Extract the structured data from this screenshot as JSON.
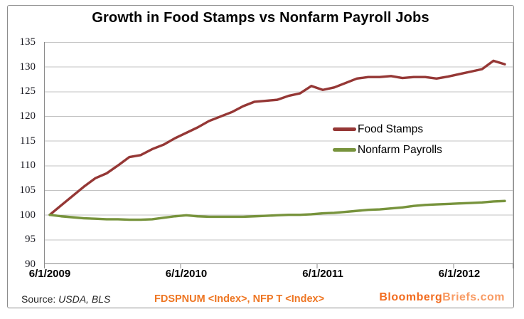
{
  "title": "Growth in Food Stamps vs Nonfarm Payroll Jobs",
  "legend": {
    "items": [
      {
        "label": "Food Stamps"
      },
      {
        "label": "Nonfarm Payrolls"
      }
    ]
  },
  "footer": {
    "source_prefix": "Source: ",
    "source_value": "USDA, BLS",
    "tickers": "FDSPNUM <Index>, NFP T <Index>",
    "brand_main": "Bloomberg",
    "brand_secondary": "Briefs.com"
  },
  "colors": {
    "food_stamps": "#953735",
    "nonfarm_payrolls": "#77933C",
    "grid": "#c3c3c3",
    "axis": "#8c8c8c",
    "ticker_orange": "#ee7623",
    "brand_orange": "#f26d21",
    "brand_orange_light": "#f89a62"
  },
  "chart_data": {
    "type": "line",
    "title": "Growth in Food Stamps vs Nonfarm Payroll Jobs",
    "xlabel": "",
    "ylabel": "",
    "ylim": [
      90,
      135
    ],
    "y_ticks": [
      90,
      95,
      100,
      105,
      110,
      115,
      120,
      125,
      130,
      135
    ],
    "x_tick_labels": [
      "6/1/2009",
      "6/1/2010",
      "6/1/2011",
      "6/1/2012"
    ],
    "grid": "horizontal",
    "legend_position": "center-right",
    "index_base": "June 2009 = 100",
    "x": [
      "Jun 2009",
      "Jul 2009",
      "Aug 2009",
      "Sep 2009",
      "Oct 2009",
      "Nov 2009",
      "Dec 2009",
      "Jan 2010",
      "Feb 2010",
      "Mar 2010",
      "Apr 2010",
      "May 2010",
      "Jun 2010",
      "Jul 2010",
      "Aug 2010",
      "Sep 2010",
      "Oct 2010",
      "Nov 2010",
      "Dec 2010",
      "Jan 2011",
      "Feb 2011",
      "Mar 2011",
      "Apr 2011",
      "May 2011",
      "Jun 2011",
      "Jul 2011",
      "Aug 2011",
      "Sep 2011",
      "Oct 2011",
      "Nov 2011",
      "Dec 2011",
      "Jan 2012",
      "Feb 2012",
      "Mar 2012",
      "Apr 2012",
      "May 2012",
      "Jun 2012",
      "Jul 2012",
      "Aug 2012",
      "Sep 2012",
      "Oct 2012"
    ],
    "series": [
      {
        "name": "Food Stamps",
        "ticker": "FDSPNUM <Index>",
        "color": "#953735",
        "values": [
          100.0,
          101.9,
          103.8,
          105.7,
          107.4,
          108.4,
          110.0,
          111.7,
          112.1,
          113.3,
          114.2,
          115.5,
          116.6,
          117.7,
          119.0,
          119.9,
          120.8,
          122.0,
          122.9,
          123.1,
          123.3,
          124.1,
          124.6,
          126.1,
          125.3,
          125.8,
          126.7,
          127.6,
          127.9,
          127.9,
          128.1,
          127.7,
          127.9,
          127.9,
          127.6,
          128.0,
          128.5,
          129.0,
          129.5,
          131.2,
          130.5
        ]
      },
      {
        "name": "Nonfarm Payrolls",
        "ticker": "NFP T <Index>",
        "color": "#77933C",
        "values": [
          100.0,
          99.7,
          99.5,
          99.3,
          99.2,
          99.1,
          99.1,
          99.0,
          99.0,
          99.1,
          99.4,
          99.7,
          99.9,
          99.7,
          99.6,
          99.6,
          99.6,
          99.6,
          99.7,
          99.8,
          99.9,
          100.0,
          100.0,
          100.1,
          100.3,
          100.4,
          100.6,
          100.8,
          101.0,
          101.1,
          101.3,
          101.5,
          101.8,
          102.0,
          102.1,
          102.2,
          102.3,
          102.4,
          102.5,
          102.7,
          102.8
        ]
      }
    ]
  }
}
